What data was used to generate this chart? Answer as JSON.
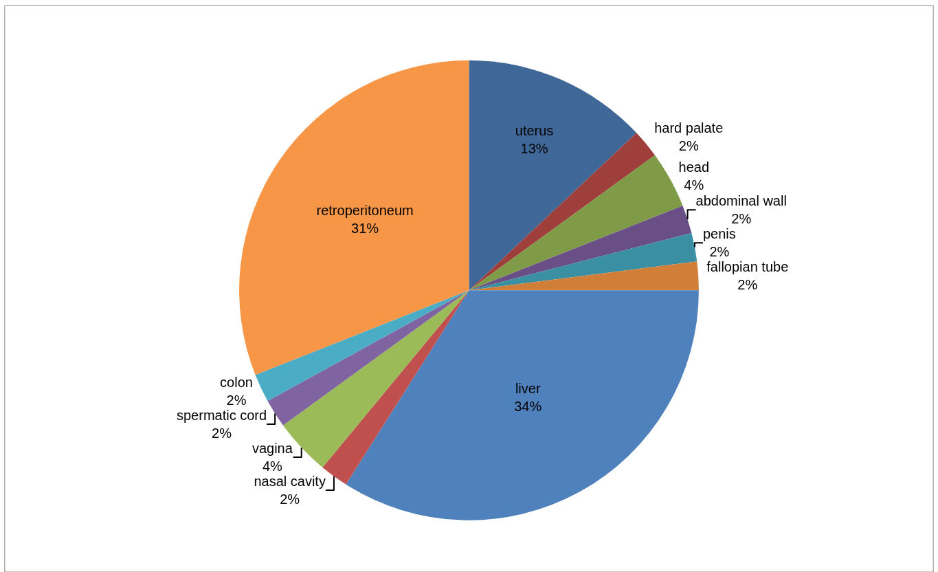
{
  "chart_data": {
    "type": "pie",
    "categories": [
      "uterus",
      "hard palate",
      "head",
      "abdominal wall",
      "penis",
      "fallopian tube",
      "liver",
      "nasal cavity",
      "vagina",
      "spermatic cord",
      "colon",
      "retroperitoneum"
    ],
    "values": [
      13,
      2,
      4,
      2,
      2,
      2,
      34,
      2,
      4,
      2,
      2,
      31
    ],
    "value_labels": [
      "13%",
      "2%",
      "4%",
      "2%",
      "2%",
      "2%",
      "34%",
      "2%",
      "4%",
      "2%",
      "2%",
      "31%"
    ],
    "colors": [
      "#3f6898",
      "#9e3f3c",
      "#7f9b48",
      "#6a4f86",
      "#3a8fa3",
      "#d17e38",
      "#4f81bd",
      "#c0504d",
      "#9bbb59",
      "#8064a2",
      "#4bacc6",
      "#f79646"
    ],
    "legend": false
  }
}
